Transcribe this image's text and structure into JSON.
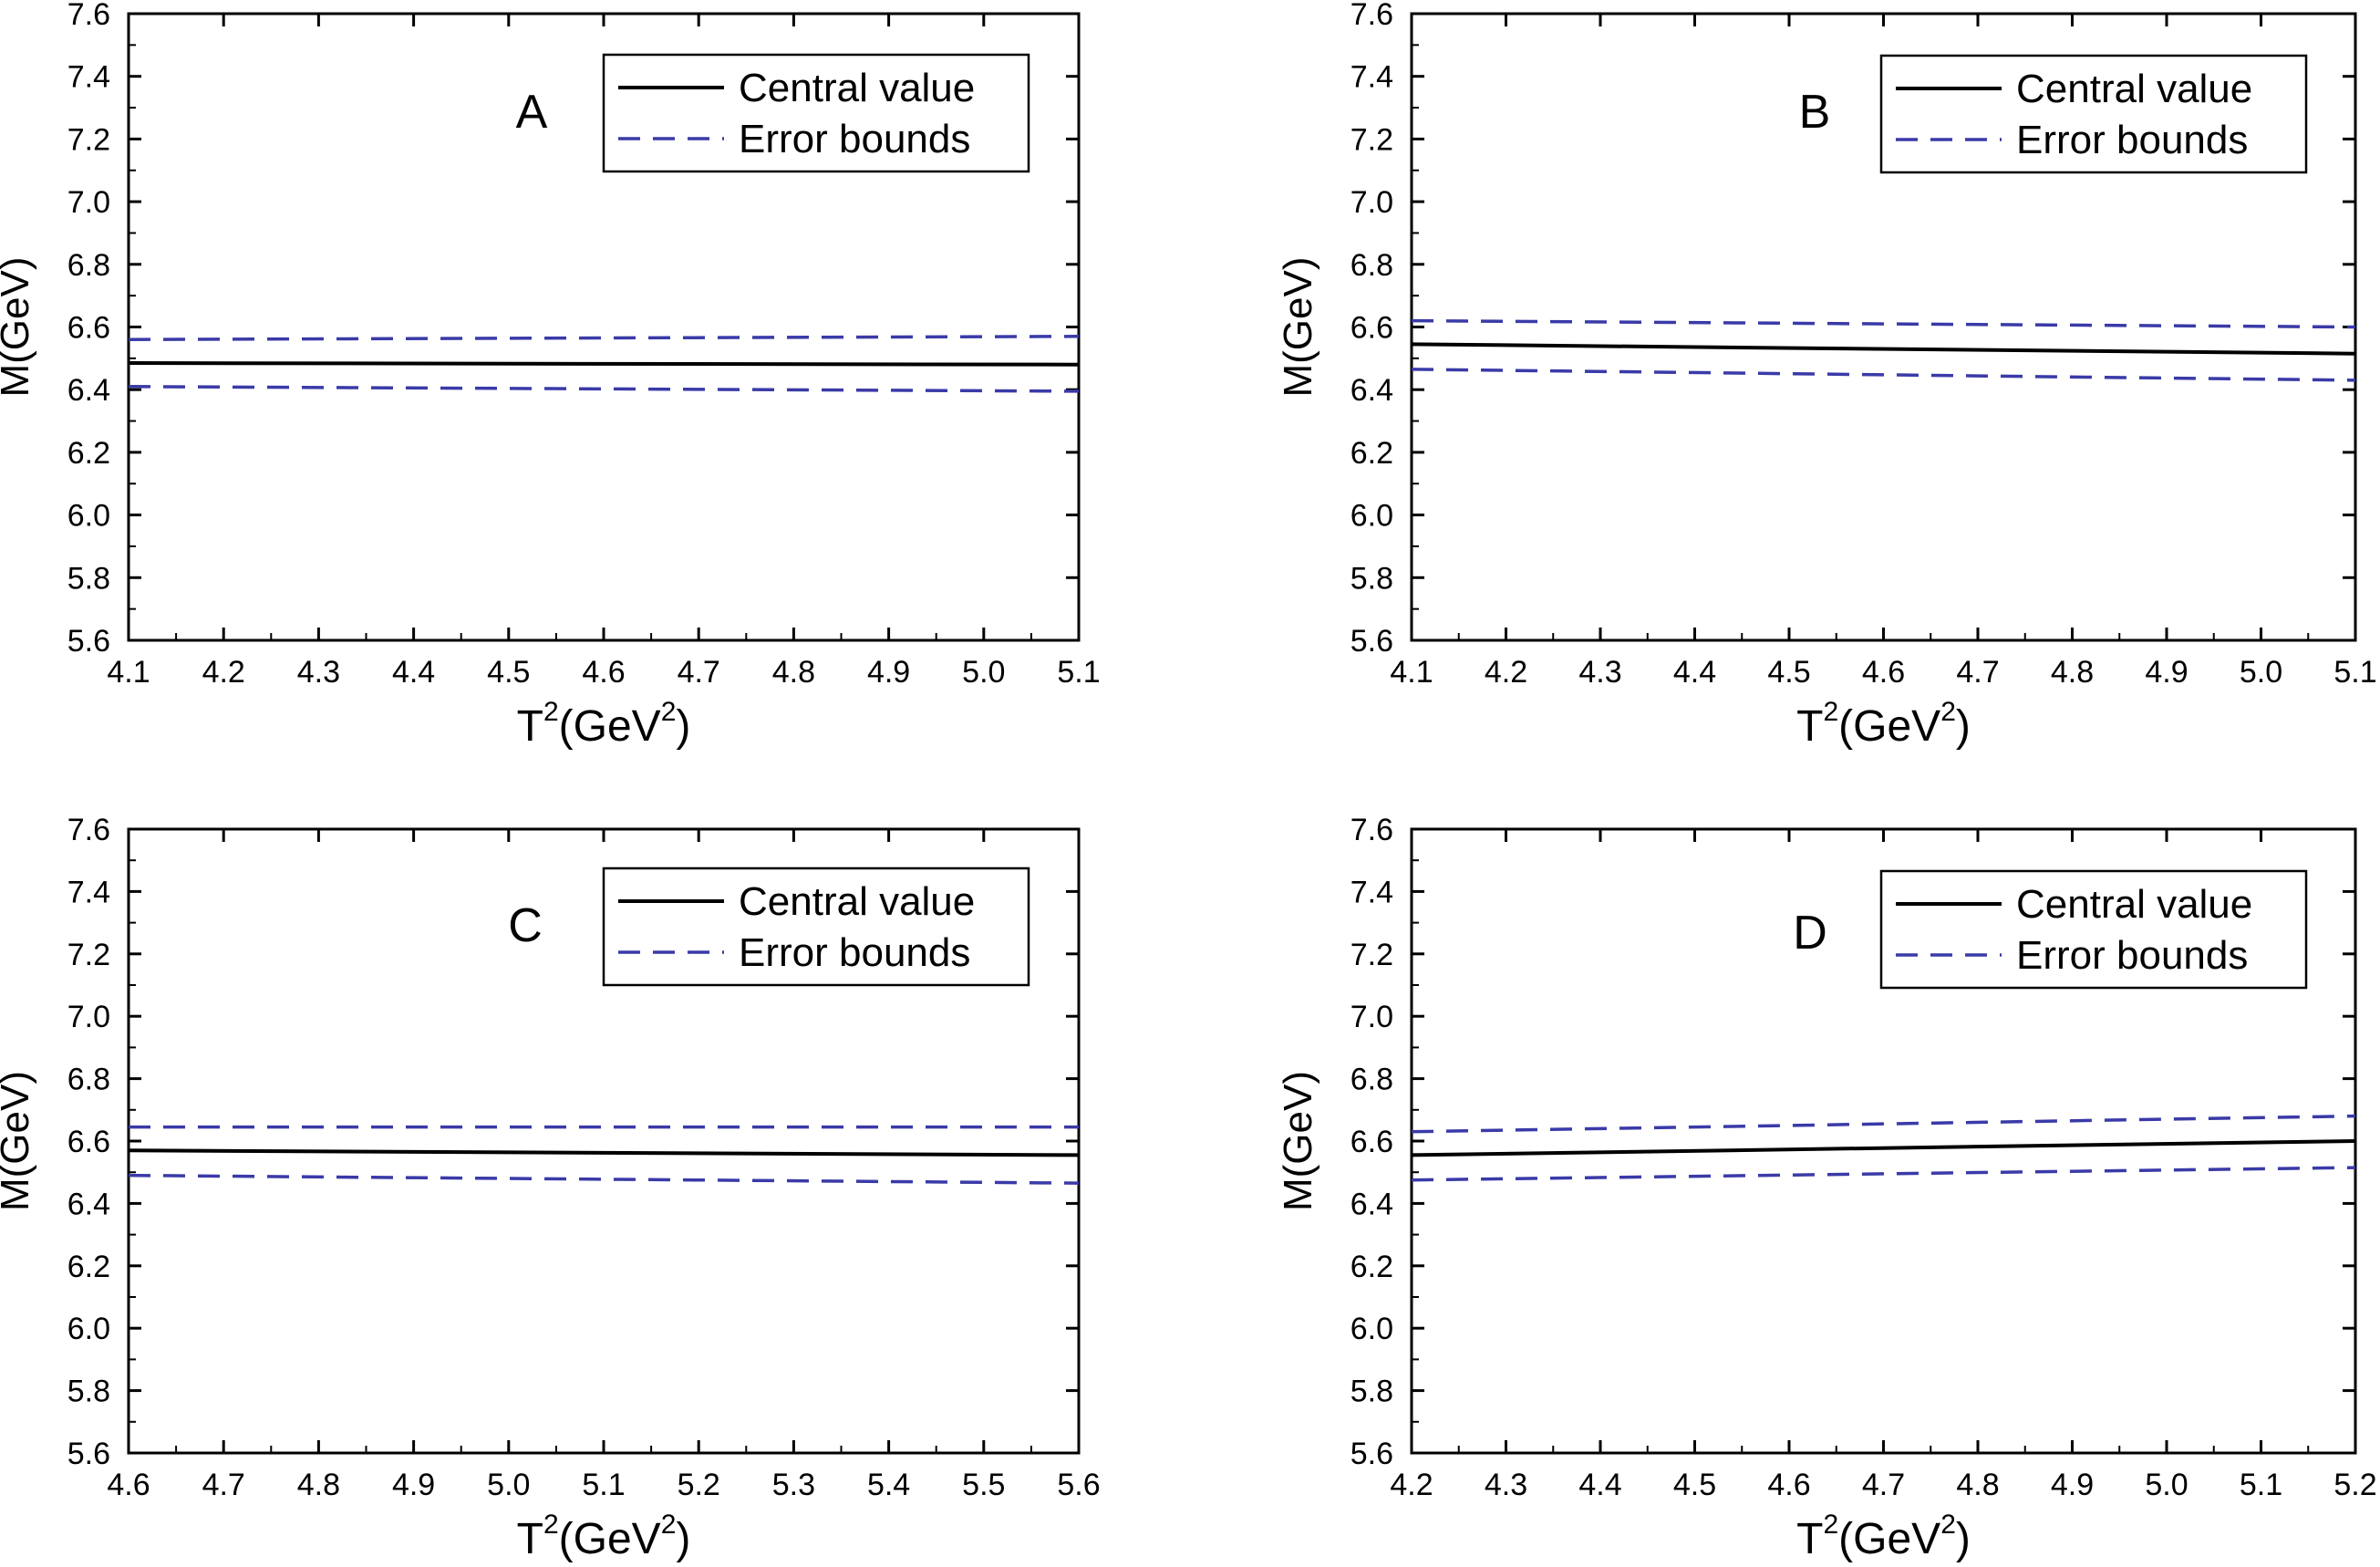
{
  "chart_data": [
    {
      "type": "line",
      "panel_label": "A",
      "xlabel_base": "T",
      "xlabel_sup": "2",
      "xlabel_mid": "(GeV",
      "xlabel_sup2": "2",
      "xlabel_end": ")",
      "ylabel": "M(GeV)",
      "xlim": [
        4.1,
        5.1
      ],
      "ylim": [
        5.6,
        7.6
      ],
      "x_ticks": [
        "4.1",
        "4.2",
        "4.3",
        "4.4",
        "4.5",
        "4.6",
        "4.7",
        "4.8",
        "4.9",
        "5.0",
        "5.1"
      ],
      "y_ticks": [
        "5.6",
        "5.8",
        "6.0",
        "6.2",
        "6.4",
        "6.6",
        "6.8",
        "7.0",
        "7.2",
        "7.4",
        "7.6"
      ],
      "legend": [
        "Central value",
        "Error bounds"
      ],
      "series": [
        {
          "name": "Central value",
          "style": "solid",
          "x": [
            4.1,
            5.1
          ],
          "y": [
            6.485,
            6.48
          ]
        },
        {
          "name": "Upper bound",
          "style": "dashed",
          "x": [
            4.1,
            5.1
          ],
          "y": [
            6.56,
            6.57
          ]
        },
        {
          "name": "Lower bound",
          "style": "dashed",
          "x": [
            4.1,
            5.1
          ],
          "y": [
            6.41,
            6.395
          ]
        }
      ]
    },
    {
      "type": "line",
      "panel_label": "B",
      "xlabel_base": "T",
      "xlabel_sup": "2",
      "xlabel_mid": "(GeV",
      "xlabel_sup2": "2",
      "xlabel_end": ")",
      "ylabel": "M(GeV)",
      "xlim": [
        4.1,
        5.1
      ],
      "ylim": [
        5.6,
        7.6
      ],
      "x_ticks": [
        "4.1",
        "4.2",
        "4.3",
        "4.4",
        "4.5",
        "4.6",
        "4.7",
        "4.8",
        "4.9",
        "5.0",
        "5.1"
      ],
      "y_ticks": [
        "5.6",
        "5.8",
        "6.0",
        "6.2",
        "6.4",
        "6.6",
        "6.8",
        "7.0",
        "7.2",
        "7.4",
        "7.6"
      ],
      "legend": [
        "Central value",
        "Error bounds"
      ],
      "series": [
        {
          "name": "Central value",
          "style": "solid",
          "x": [
            4.1,
            5.1
          ],
          "y": [
            6.545,
            6.515
          ]
        },
        {
          "name": "Upper bound",
          "style": "dashed",
          "x": [
            4.1,
            5.1
          ],
          "y": [
            6.62,
            6.6
          ]
        },
        {
          "name": "Lower bound",
          "style": "dashed",
          "x": [
            4.1,
            5.1
          ],
          "y": [
            6.465,
            6.43
          ]
        }
      ]
    },
    {
      "type": "line",
      "panel_label": "C",
      "xlabel_base": "T",
      "xlabel_sup": "2",
      "xlabel_mid": "(GeV",
      "xlabel_sup2": "2",
      "xlabel_end": ")",
      "ylabel": "M(GeV)",
      "xlim": [
        4.6,
        5.6
      ],
      "ylim": [
        5.6,
        7.6
      ],
      "x_ticks": [
        "4.6",
        "4.7",
        "4.8",
        "4.9",
        "5.0",
        "5.1",
        "5.2",
        "5.3",
        "5.4",
        "5.5",
        "5.6"
      ],
      "y_ticks": [
        "5.6",
        "5.8",
        "6.0",
        "6.2",
        "6.4",
        "6.6",
        "6.8",
        "7.0",
        "7.2",
        "7.4",
        "7.6"
      ],
      "legend": [
        "Central value",
        "Error bounds"
      ],
      "series": [
        {
          "name": "Central value",
          "style": "solid",
          "x": [
            4.6,
            5.6
          ],
          "y": [
            6.57,
            6.555
          ]
        },
        {
          "name": "Upper bound",
          "style": "dashed",
          "x": [
            4.6,
            5.6
          ],
          "y": [
            6.645,
            6.645
          ]
        },
        {
          "name": "Lower bound",
          "style": "dashed",
          "x": [
            4.6,
            5.6
          ],
          "y": [
            6.49,
            6.465
          ]
        }
      ]
    },
    {
      "type": "line",
      "panel_label": "D",
      "xlabel_base": "T",
      "xlabel_sup": "2",
      "xlabel_mid": "(GeV",
      "xlabel_sup2": "2",
      "xlabel_end": ")",
      "ylabel": "M(GeV)",
      "xlim": [
        4.2,
        5.2
      ],
      "ylim": [
        5.6,
        7.6
      ],
      "x_ticks": [
        "4.2",
        "4.3",
        "4.4",
        "4.5",
        "4.6",
        "4.7",
        "4.8",
        "4.9",
        "5.0",
        "5.1",
        "5.2"
      ],
      "y_ticks": [
        "5.6",
        "5.8",
        "6.0",
        "6.2",
        "6.4",
        "6.6",
        "6.8",
        "7.0",
        "7.2",
        "7.4",
        "7.6"
      ],
      "legend": [
        "Central value",
        "Error bounds"
      ],
      "series": [
        {
          "name": "Central value",
          "style": "solid",
          "x": [
            4.2,
            5.2
          ],
          "y": [
            6.555,
            6.6
          ]
        },
        {
          "name": "Upper bound",
          "style": "dashed",
          "x": [
            4.2,
            5.2
          ],
          "y": [
            6.63,
            6.68
          ]
        },
        {
          "name": "Lower bound",
          "style": "dashed",
          "x": [
            4.2,
            5.2
          ],
          "y": [
            6.475,
            6.515
          ]
        }
      ]
    }
  ],
  "colors": {
    "central": "#000000",
    "bounds": "#3a3aa8",
    "axis": "#000000"
  }
}
